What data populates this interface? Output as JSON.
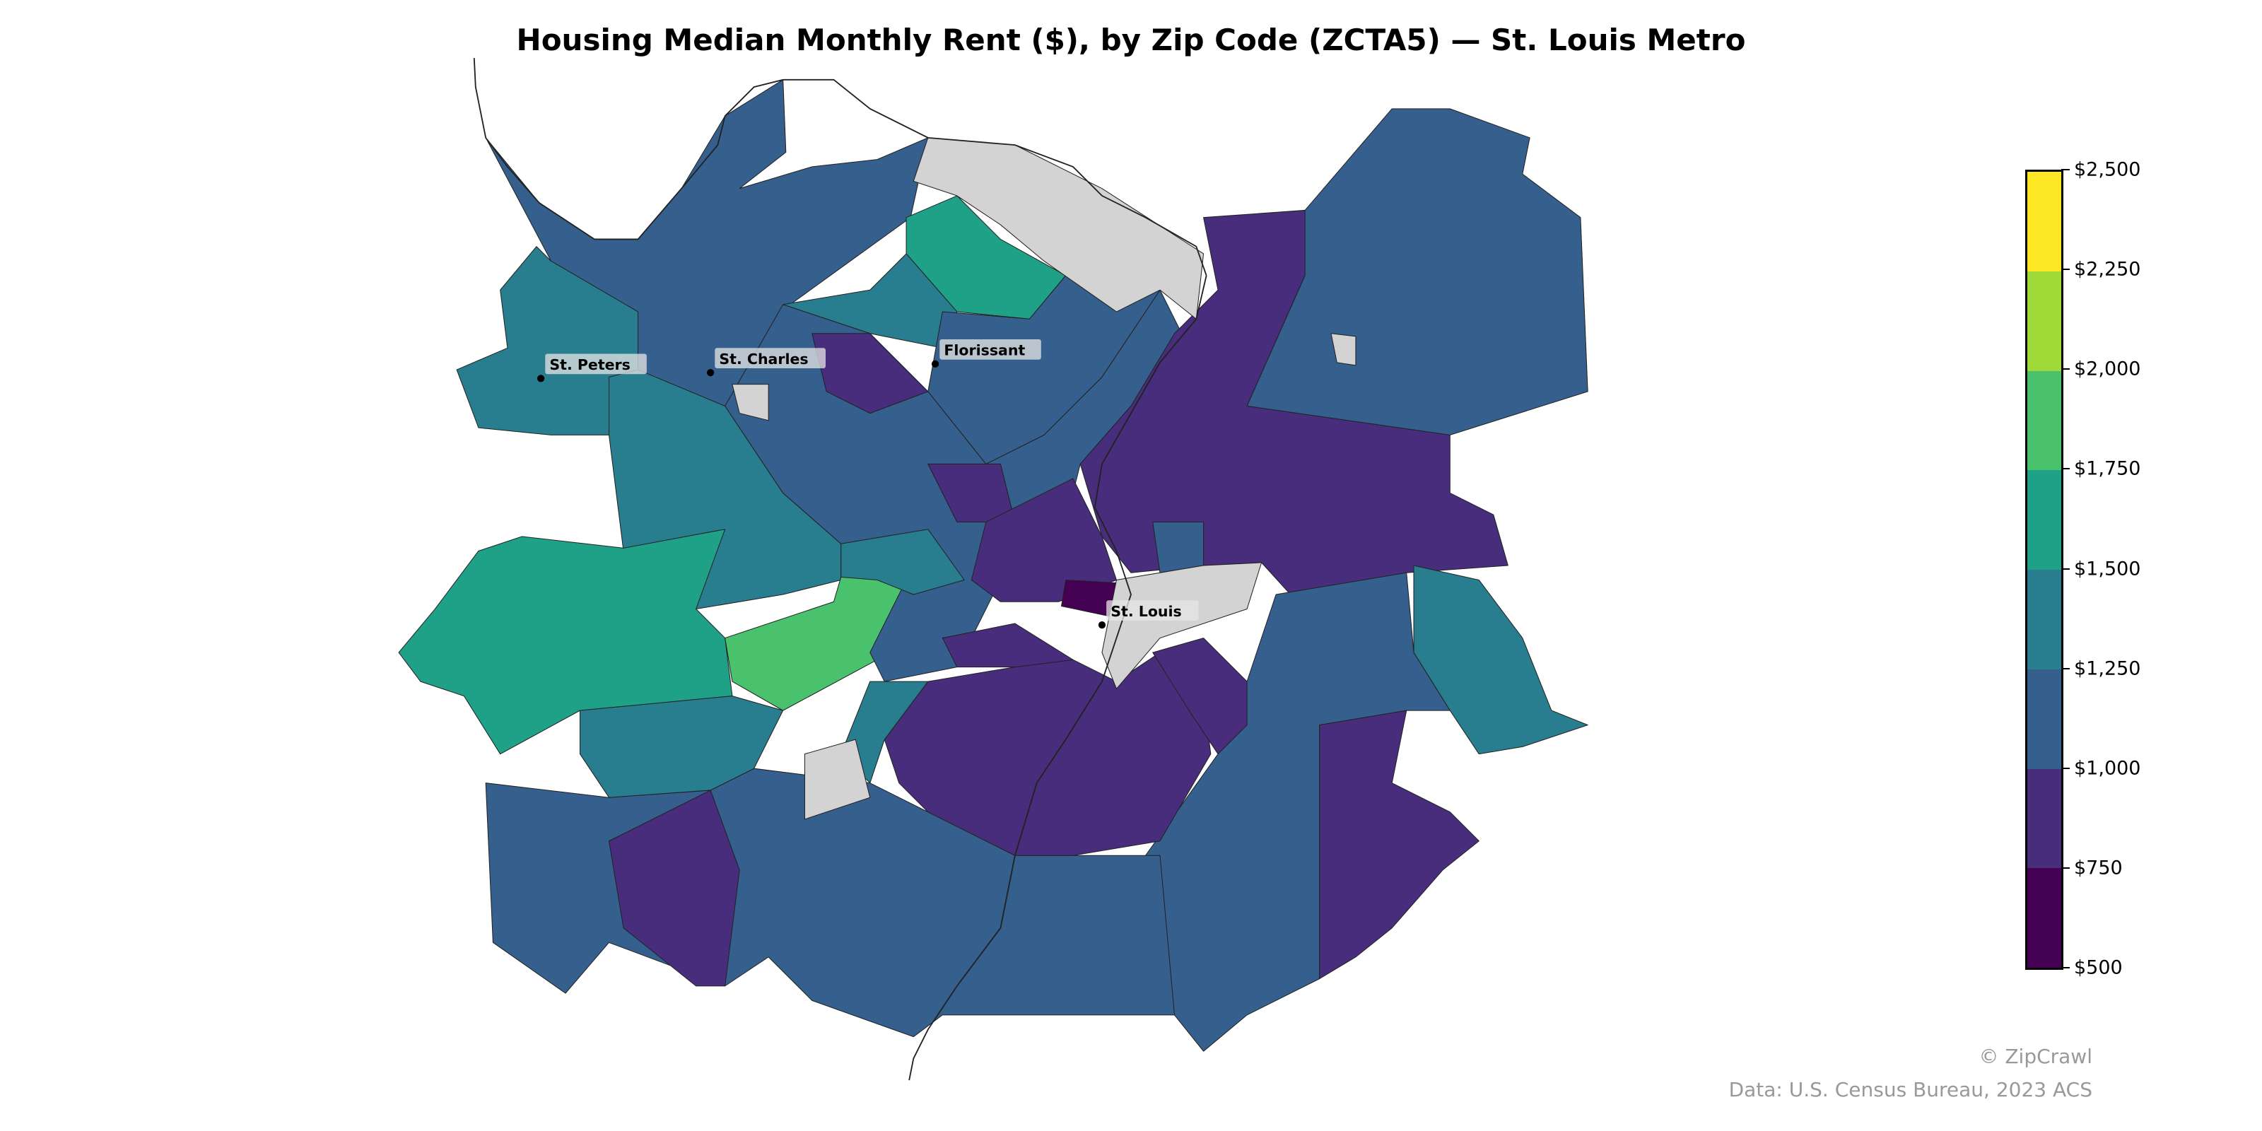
{
  "title": "Housing Median Monthly Rent ($), by Zip Code (ZCTA5) — St. Louis Metro",
  "legend": {
    "ticks": [
      "$500",
      "$750",
      "$1,000",
      "$1,250",
      "$1,500",
      "$1,750",
      "$2,000",
      "$2,250",
      "$2,500"
    ],
    "bin_colors": [
      "#440154",
      "#472d7b",
      "#355f8d",
      "#287d8e",
      "#1fa187",
      "#4ac16d",
      "#a0da39",
      "#fde725"
    ],
    "no_data_color": "#d3d3d3"
  },
  "cities": [
    {
      "name": "St. Peters"
    },
    {
      "name": "St. Charles"
    },
    {
      "name": "Florissant"
    },
    {
      "name": "St. Louis"
    }
  ],
  "footer": {
    "credit": "© ZipCrawl",
    "source": "Data: U.S. Census Bureau, 2023 ACS"
  }
}
